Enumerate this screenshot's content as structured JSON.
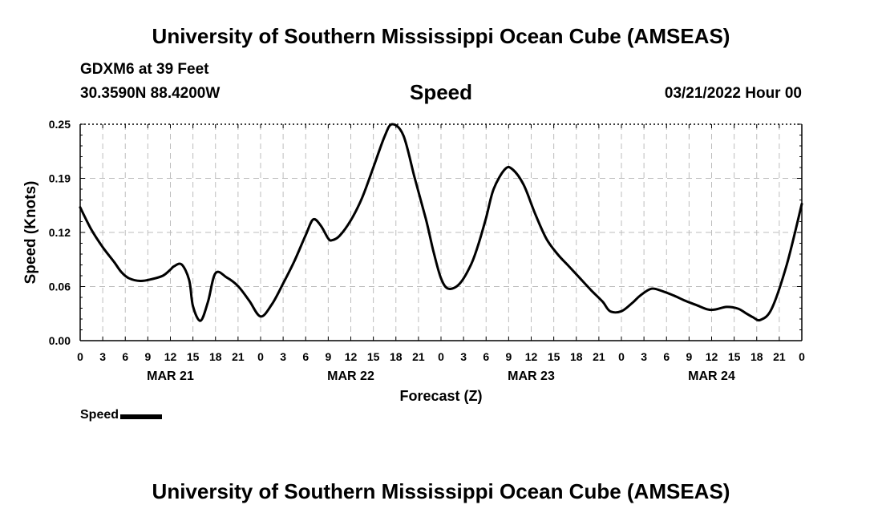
{
  "header": {
    "title": "University of Southern Mississippi Ocean Cube (AMSEAS)",
    "station": "GDXM6 at 39 Feet",
    "coordinates": "30.3590N  88.4200W",
    "variable_title": "Speed",
    "date_hour": "03/21/2022 Hour 00"
  },
  "footer": {
    "title": "University of Southern Mississippi Ocean Cube (AMSEAS)"
  },
  "legend": {
    "label": "Speed"
  },
  "chart_data": {
    "type": "line",
    "title": "Speed",
    "xlabel": "Forecast (Z)",
    "ylabel": "Speed (Knots)",
    "ylim": [
      0,
      0.25
    ],
    "yticks": [
      "0.00",
      "0.06",
      "0.12",
      "0.19",
      "0.25"
    ],
    "ytick_values": [
      0,
      0.0625,
      0.125,
      0.1875,
      0.25
    ],
    "xlim_hours": [
      0,
      96
    ],
    "xtick_step_hours": 3,
    "xtick_labels": [
      "0",
      "3",
      "6",
      "9",
      "12",
      "15",
      "18",
      "21",
      "0",
      "3",
      "6",
      "9",
      "12",
      "15",
      "18",
      "21",
      "0",
      "3",
      "6",
      "9",
      "12",
      "15",
      "18",
      "21",
      "0",
      "3",
      "6",
      "9",
      "12",
      "15",
      "18",
      "21",
      "0"
    ],
    "day_labels": [
      {
        "label": "MAR 21",
        "center_hour": 12
      },
      {
        "label": "MAR 22",
        "center_hour": 36
      },
      {
        "label": "MAR 23",
        "center_hour": 60
      },
      {
        "label": "MAR 24",
        "center_hour": 84
      }
    ],
    "grid": true,
    "legend_position": "bottom-left",
    "series": [
      {
        "name": "Speed",
        "color": "#000000",
        "x": [
          0,
          1.5,
          3,
          4.5,
          5.5,
          6.5,
          8,
          9.5,
          11,
          12,
          12.5,
          13.5,
          14.5,
          15,
          16,
          17,
          18,
          19.5,
          21,
          22.5,
          24,
          25.5,
          27,
          28.5,
          30,
          31,
          32,
          33,
          33.5,
          34.5,
          36,
          37.5,
          39,
          40.5,
          41.5,
          43,
          44.5,
          46,
          47,
          48,
          49,
          50.5,
          52,
          53,
          54,
          55,
          56.5,
          57.5,
          59,
          60.5,
          62,
          63.5,
          65,
          66.5,
          68,
          69.5,
          70.5,
          72,
          73.5,
          74.5,
          76,
          77.5,
          79,
          80.5,
          82,
          83.5,
          84.5,
          86,
          87.5,
          88.5,
          89.5,
          90.5,
          92,
          94,
          96
        ],
        "values": [
          0.154,
          0.128,
          0.108,
          0.091,
          0.079,
          0.072,
          0.069,
          0.071,
          0.075,
          0.082,
          0.086,
          0.088,
          0.07,
          0.04,
          0.023,
          0.045,
          0.078,
          0.073,
          0.063,
          0.046,
          0.028,
          0.042,
          0.066,
          0.092,
          0.122,
          0.14,
          0.133,
          0.118,
          0.116,
          0.121,
          0.139,
          0.165,
          0.2,
          0.236,
          0.25,
          0.237,
          0.188,
          0.14,
          0.103,
          0.072,
          0.06,
          0.066,
          0.088,
          0.112,
          0.142,
          0.175,
          0.198,
          0.198,
          0.18,
          0.147,
          0.118,
          0.1,
          0.086,
          0.072,
          0.058,
          0.045,
          0.034,
          0.034,
          0.044,
          0.052,
          0.06,
          0.057,
          0.052,
          0.046,
          0.041,
          0.036,
          0.036,
          0.039,
          0.037,
          0.032,
          0.027,
          0.024,
          0.037,
          0.088,
          0.158
        ]
      }
    ]
  }
}
